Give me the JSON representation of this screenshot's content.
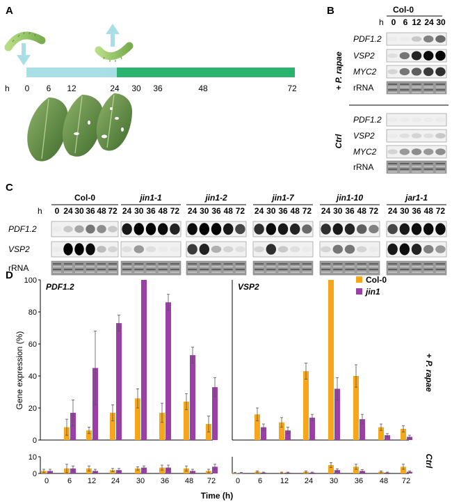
{
  "panel_a": {
    "label": "A",
    "h_label": "h",
    "ticks": [
      "0",
      "6",
      "12",
      "24",
      "30",
      "36",
      "48",
      "72"
    ],
    "feeding_color": "#a8dfe6",
    "post_color": "#2ab36e"
  },
  "panel_b": {
    "label": "B",
    "genotype": "Col-0",
    "h_label": "h",
    "times": [
      "0",
      "6",
      "12",
      "24",
      "30"
    ],
    "treat_label": "+ P. rapae",
    "ctrl_label": "Ctrl",
    "genes": [
      "PDF1.2",
      "VSP2",
      "MYC2",
      "rRNA"
    ]
  },
  "panel_c": {
    "label": "C",
    "h_label": "h",
    "genes": [
      "PDF1.2",
      "VSP2",
      "rRNA"
    ],
    "groups": [
      {
        "name": "Col-0",
        "times": [
          "0",
          "24",
          "30",
          "36",
          "48",
          "72"
        ]
      },
      {
        "name": "jin1-1",
        "times": [
          "24",
          "30",
          "36",
          "48",
          "72"
        ]
      },
      {
        "name": "jin1-2",
        "times": [
          "24",
          "30",
          "36",
          "48",
          "72"
        ]
      },
      {
        "name": "jin1-7",
        "times": [
          "24",
          "30",
          "36",
          "48",
          "72"
        ]
      },
      {
        "name": "jin1-10",
        "times": [
          "24",
          "30",
          "36",
          "48",
          "72"
        ]
      },
      {
        "name": "jar1-1",
        "times": [
          "24",
          "30",
          "36",
          "48",
          "72"
        ]
      }
    ]
  },
  "panel_d": {
    "label": "D",
    "ylabel": "Gene expression (%)",
    "xlabel": "Time (h)",
    "treat_label": "+ P. rapae",
    "ctrl_label": "Ctrl",
    "legend": [
      {
        "name": "Col-0",
        "color": "#f6a61a"
      },
      {
        "name": "jin1",
        "color": "#9a3fa6"
      }
    ]
  },
  "chart_data": [
    {
      "type": "bar",
      "title": "PDF1.2",
      "ylabel": "Gene expression (%)",
      "xlabel": "",
      "categories": [
        "0",
        "6",
        "12",
        "24",
        "30",
        "36",
        "48",
        "72"
      ],
      "ylim": [
        0,
        100
      ],
      "yticks": [
        "0",
        "20",
        "40",
        "60",
        "80",
        "100"
      ],
      "series": [
        {
          "name": "Col-0",
          "color": "#f6a61a",
          "values": [
            0,
            8,
            6,
            17,
            26,
            17,
            24,
            10
          ],
          "errors": [
            0,
            5,
            2,
            5,
            6,
            6,
            5,
            5
          ]
        },
        {
          "name": "jin1",
          "color": "#9a3fa6",
          "values": [
            0,
            17,
            45,
            73,
            100,
            86,
            53,
            33
          ],
          "errors": [
            0,
            8,
            23,
            5,
            0,
            5,
            5,
            6
          ]
        }
      ]
    },
    {
      "type": "bar",
      "title": "VSP2",
      "ylabel": "",
      "xlabel": "",
      "categories": [
        "0",
        "6",
        "12",
        "24",
        "30",
        "36",
        "48",
        "72"
      ],
      "ylim": [
        0,
        100
      ],
      "series": [
        {
          "name": "Col-0",
          "color": "#f6a61a",
          "values": [
            0,
            16,
            11,
            43,
            100,
            40,
            8,
            7
          ],
          "errors": [
            0,
            4,
            3,
            5,
            0,
            7,
            2,
            2
          ]
        },
        {
          "name": "jin1",
          "color": "#9a3fa6",
          "values": [
            0,
            8,
            6,
            14,
            32,
            13,
            3,
            2
          ],
          "errors": [
            0,
            2,
            2,
            2,
            7,
            3,
            1,
            1
          ]
        }
      ]
    },
    {
      "type": "bar",
      "title": "",
      "ylabel": "",
      "xlabel": "Time (h)",
      "categories": [
        "0",
        "6",
        "12",
        "24",
        "30",
        "36",
        "48",
        "72"
      ],
      "ylim": [
        0,
        10
      ],
      "yticks": [
        "0",
        "10"
      ],
      "series": [
        {
          "name": "Col-0",
          "color": "#f6a61a",
          "values": [
            1.5,
            3,
            3,
            2,
            3,
            3.5,
            3,
            1.5
          ],
          "errors": [
            1,
            2.5,
            1.5,
            1,
            1,
            1.5,
            1.5,
            1
          ]
        },
        {
          "name": "jin1",
          "color": "#9a3fa6",
          "values": [
            1.5,
            3,
            1.5,
            2,
            3.5,
            3.5,
            1.5,
            4
          ],
          "errors": [
            1,
            1.5,
            1,
            1,
            1,
            1.5,
            1,
            1.5
          ]
        }
      ]
    },
    {
      "type": "bar",
      "title": "",
      "ylabel": "",
      "xlabel": "",
      "categories": [
        "0",
        "6",
        "12",
        "24",
        "30",
        "36",
        "48",
        "72"
      ],
      "ylim": [
        0,
        10
      ],
      "series": [
        {
          "name": "Col-0",
          "color": "#f6a61a",
          "values": [
            0.3,
            1,
            0.5,
            1,
            5,
            4,
            1,
            4
          ],
          "errors": [
            0.3,
            0.5,
            0.3,
            0.5,
            1.5,
            1.5,
            0.5,
            1.5
          ]
        },
        {
          "name": "jin1",
          "color": "#9a3fa6",
          "values": [
            0.3,
            0.5,
            0.5,
            0.5,
            2,
            1.5,
            0.5,
            1
          ],
          "errors": [
            0.3,
            0.3,
            0.3,
            0.3,
            0.8,
            0.8,
            0.3,
            0.5
          ]
        }
      ]
    }
  ]
}
